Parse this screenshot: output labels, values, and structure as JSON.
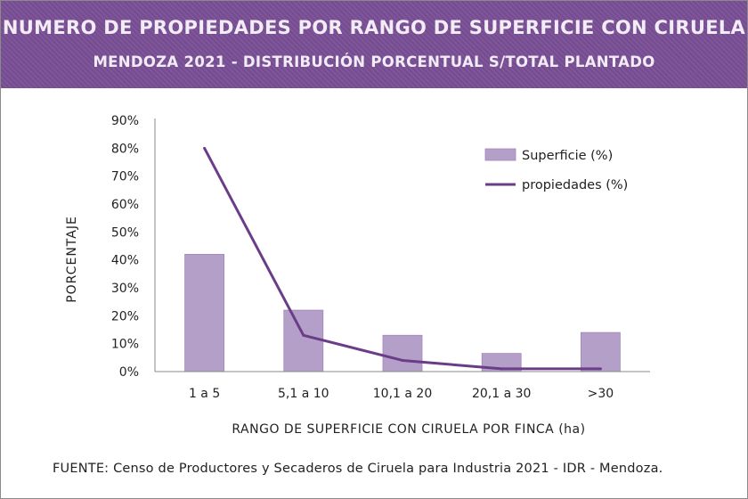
{
  "header": {
    "title_line1": "NUMERO DE PROPIEDADES POR RANGO DE SUPERFICIE CON CIRUELA",
    "title_line2": "MENDOZA 2021 - DISTRIBUCIÓN PORCENTUAL S/TOTAL PLANTADO"
  },
  "colors": {
    "header_bg": "#7a4f95",
    "bar_fill": "#b49fc9",
    "bar_stroke": "#9f87b9",
    "line": "#6b3d88"
  },
  "chart_data": {
    "type": "bar",
    "categories": [
      "1 a 5",
      "5,1 a 10",
      "10,1 a 20",
      "20,1 a 30",
      ">30"
    ],
    "series": [
      {
        "name": "Superficie (%)",
        "kind": "bar",
        "values": [
          42,
          22,
          13,
          6.5,
          14
        ]
      },
      {
        "name": "propiedades (%)",
        "kind": "line",
        "values": [
          80,
          13,
          4,
          1,
          1
        ]
      }
    ],
    "ylabel": "PORCENTAJE",
    "xlabel": "RANGO DE SUPERFICIE CON CIRUELA POR FINCA (ha)",
    "ylim": [
      0,
      90
    ],
    "yticks": [
      "0%",
      "10%",
      "20%",
      "30%",
      "40%",
      "50%",
      "60%",
      "70%",
      "80%",
      "90%"
    ],
    "legend_position": "top-right",
    "grid": false
  },
  "footer": {
    "source_label": "FUENTE:",
    "source_text": " Censo de Productores y Secaderos de Ciruela para Industria 2021 - IDR - Mendoza."
  }
}
